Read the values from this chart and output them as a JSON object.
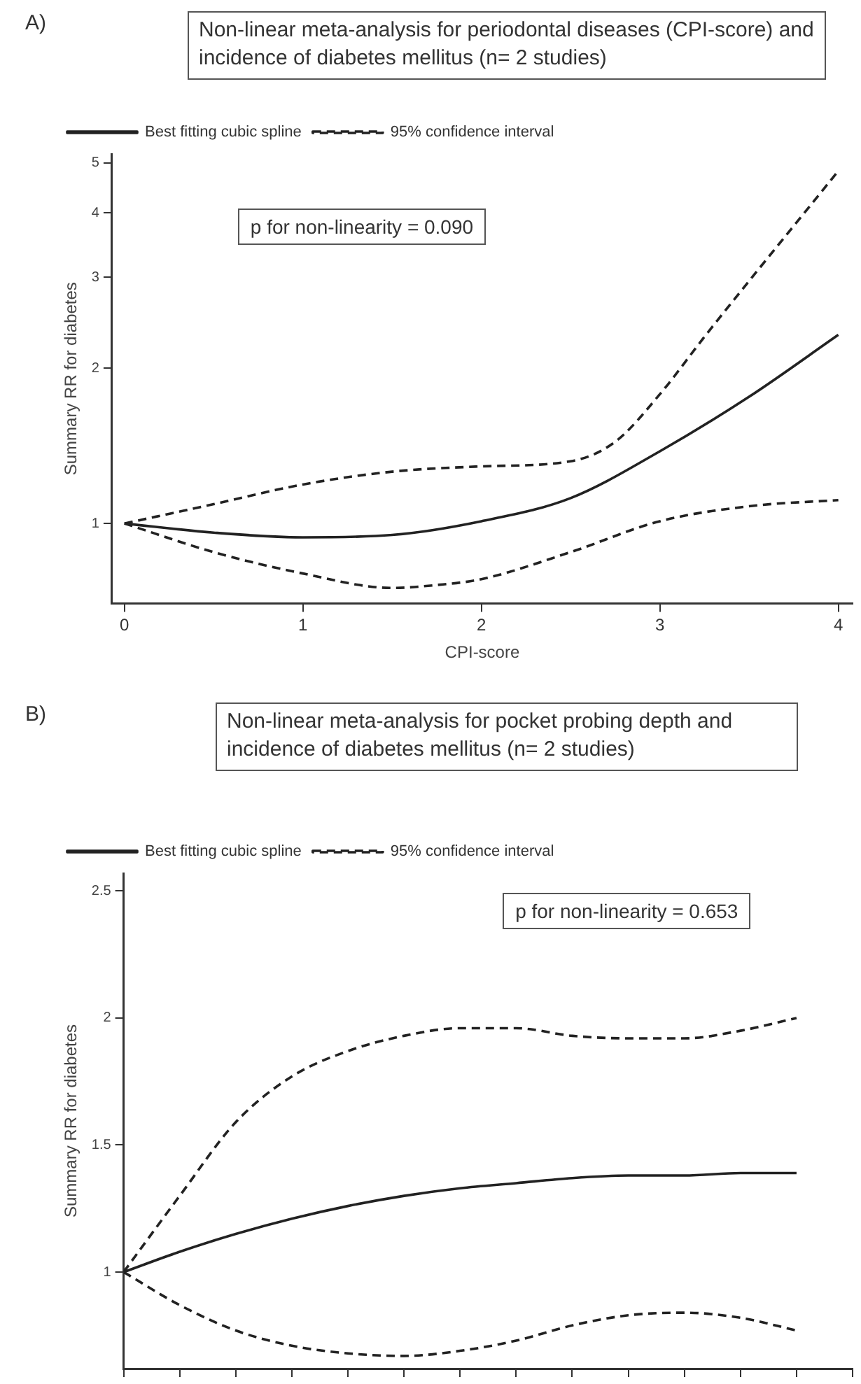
{
  "chart_data": [
    {
      "type": "line",
      "title": "Non-linear meta-analysis for periodontal diseases (CPI-score) and incidence of diabetes mellitus (n= 2 studies)",
      "xlabel": "CPI-score",
      "ylabel": "Summary RR for diabetes",
      "annotations": [
        "A)",
        "p for non-linearity =  0.090"
      ],
      "log": "y",
      "legend": "top left",
      "marker": "none",
      "grid": false,
      "xlim": [
        -0.07,
        4.08
      ],
      "xticks": [
        0,
        1,
        2,
        3,
        4
      ],
      "ylim": [
        0.71,
        5.2
      ],
      "yticks": [
        1,
        2,
        3,
        4,
        5
      ],
      "series": [
        {
          "name": "Best fitting cubic spline",
          "color": "#222222",
          "line_style": "solid",
          "x": [
            0,
            0.5,
            1,
            1.5,
            2,
            2.5,
            3,
            3.5,
            4
          ],
          "values": [
            1,
            0.96,
            0.94,
            0.95,
            1.01,
            1.12,
            1.38,
            1.76,
            2.32
          ]
        },
        {
          "name": "95% confidence interval",
          "color": "#222222",
          "line_style": "dashed",
          "x": [
            0,
            0.5,
            1,
            1.5,
            2,
            2.5,
            2.75,
            3,
            3.25,
            3.5,
            3.75,
            4
          ],
          "values": [
            1,
            1.09,
            1.19,
            1.26,
            1.29,
            1.32,
            1.44,
            1.78,
            2.3,
            2.95,
            3.77,
            4.82
          ]
        },
        {
          "color": "#222222",
          "line_style": "dashed",
          "x": [
            0,
            0.5,
            1,
            1.5,
            1.75,
            2,
            2.5,
            3,
            3.5,
            4
          ],
          "values": [
            1,
            0.88,
            0.8,
            0.75,
            0.76,
            0.78,
            0.88,
            1.01,
            1.08,
            1.11
          ]
        }
      ]
    },
    {
      "type": "line",
      "title": "Non-linear meta-analysis for pocket probing depth and incidence of diabetes mellitus (n= 2 studies)",
      "ylabel": "Summary RR for diabetes",
      "annotations": [
        "B)",
        "p for non-linearity =  0.653"
      ],
      "legend": "top left",
      "marker": "none",
      "grid": false,
      "tick_labels": "y",
      "categories": [
        null,
        null,
        null,
        null,
        null,
        null,
        null,
        null,
        null,
        null,
        null,
        null,
        null,
        null
      ],
      "ylim": [
        0.62,
        2.57
      ],
      "yticks": [
        1,
        1.5,
        2,
        2.5
      ],
      "series": [
        {
          "name": "Best fitting cubic spline",
          "color": "#222222",
          "line_style": "solid",
          "values": [
            1,
            1.08,
            1.15,
            1.21,
            1.26,
            1.3,
            1.33,
            1.35,
            1.37,
            1.38,
            1.38,
            1.39,
            1.39,
            null
          ]
        },
        {
          "name": "95% confidence interval",
          "color": "#222222",
          "line_style": "dashed",
          "values": [
            1,
            1.3,
            1.59,
            1.77,
            1.87,
            1.93,
            1.96,
            1.96,
            1.93,
            1.92,
            1.92,
            1.95,
            2,
            null
          ]
        },
        {
          "color": "#222222",
          "line_style": "dashed",
          "values": [
            1,
            0.87,
            0.77,
            0.71,
            0.68,
            0.67,
            0.69,
            0.73,
            0.79,
            0.83,
            0.84,
            0.82,
            0.77,
            null
          ]
        }
      ]
    }
  ]
}
